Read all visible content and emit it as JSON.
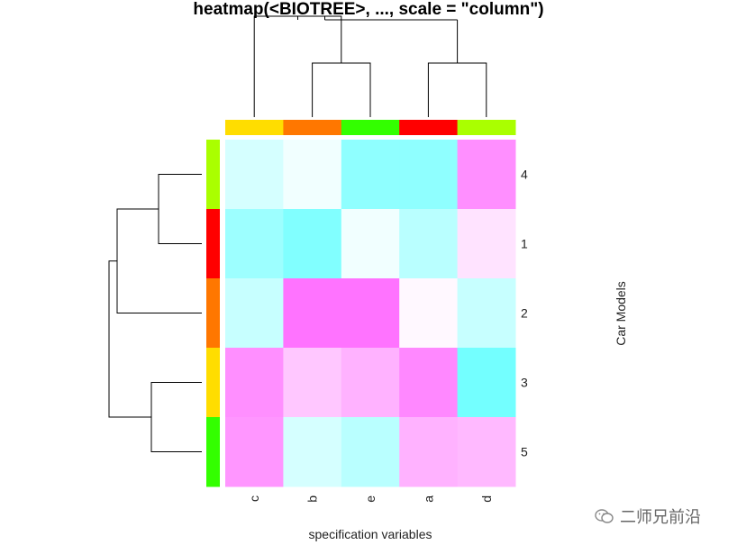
{
  "chart_data": {
    "type": "heatmap",
    "title": "heatmap(<BIOTREE>, ..., scale = \"column\")",
    "xlabel": "specification variables",
    "ylabel": "Car Models",
    "columns": [
      "c",
      "b",
      "e",
      "a",
      "d"
    ],
    "rows": [
      "4",
      "1",
      "2",
      "3",
      "5"
    ],
    "column_side_colors": [
      "#ffdd00",
      "#ff7700",
      "#33ff00",
      "#ff0000",
      "#aaff00"
    ],
    "row_side_colors": [
      "#aaff00",
      "#ff0000",
      "#ff7700",
      "#ffdd00",
      "#33ff00"
    ],
    "values": [
      [
        -0.3,
        -0.1,
        -0.8,
        -0.8,
        0.8
      ],
      [
        -0.7,
        -0.9,
        -0.1,
        -0.5,
        0.2
      ],
      [
        -0.4,
        1.0,
        1.0,
        0.05,
        -0.4
      ],
      [
        0.8,
        0.4,
        0.55,
        0.85,
        -1.0
      ],
      [
        0.75,
        -0.3,
        -0.5,
        0.55,
        0.5
      ]
    ],
    "color_scale": {
      "low": "#00ffff",
      "mid": "#ffffff",
      "high": "#ff00ff",
      "range": [
        -1,
        1
      ]
    },
    "row_dendrogram": "((4,1),2),(3,5)",
    "column_dendrogram": "(c,b,e),(a,d)"
  },
  "watermark": {
    "text": "二师兄前沿"
  }
}
